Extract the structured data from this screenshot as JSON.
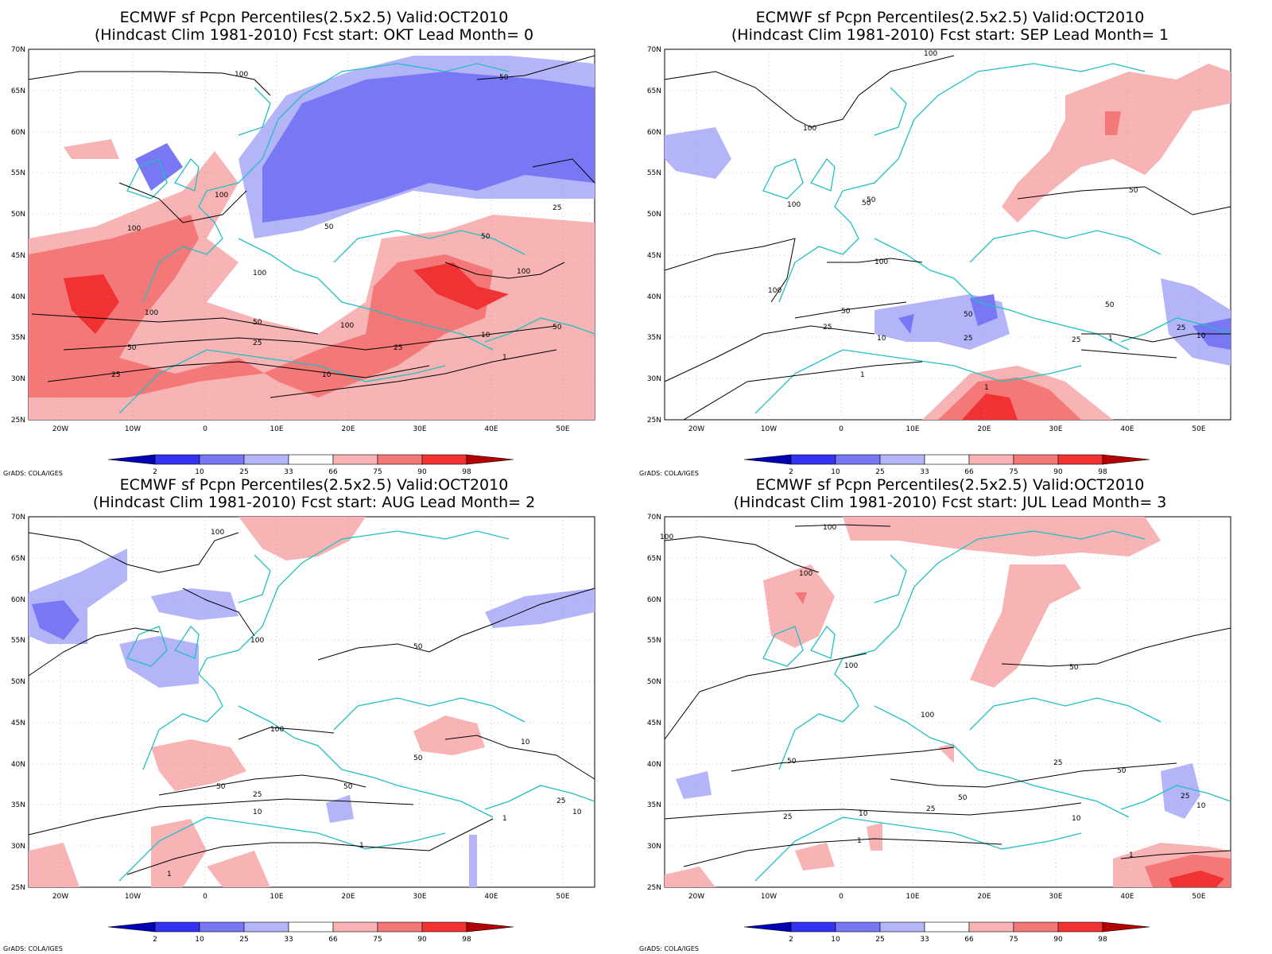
{
  "credit": "GrADS: COLA/IGES",
  "lat_ticks": [
    "70N",
    "65N",
    "60N",
    "55N",
    "50N",
    "45N",
    "40N",
    "35N",
    "30N",
    "25N"
  ],
  "lon_ticks": [
    "20W",
    "10W",
    "0",
    "10E",
    "20E",
    "30E",
    "40E",
    "50E"
  ],
  "colorbar": {
    "labels": [
      "2",
      "10",
      "25",
      "33",
      "66",
      "75",
      "90",
      "98"
    ],
    "colors": [
      "#0000b4",
      "#3232f0",
      "#7878f5",
      "#b4b4f8",
      "#ffffff",
      "#f8b4b4",
      "#f57878",
      "#f03232",
      "#b40000"
    ]
  },
  "panels": [
    {
      "title_line1": "ECMWF sf Pcpn Percentiles(2.5x2.5) Valid:OCT2010",
      "title_line2": "(Hindcast Clim 1981-2010) Fcst start: OKT  Lead Month= 0",
      "contour_labels": [
        "100",
        "100",
        "100",
        "100",
        "100",
        "100",
        "100",
        "50",
        "50",
        "50",
        "50",
        "50",
        "50",
        "25",
        "25",
        "25",
        "25",
        "10",
        "10",
        "1"
      ]
    },
    {
      "title_line1": "ECMWF sf Pcpn Percentiles(2.5x2.5) Valid:OCT2010",
      "title_line2": "(Hindcast Clim 1981-2010) Fcst start: SEP  Lead Month= 1",
      "contour_labels": [
        "100",
        "100",
        "100",
        "100",
        "100",
        "50",
        "50",
        "50",
        "50",
        "50",
        "25",
        "25",
        "25",
        "10",
        "10",
        "1",
        "1",
        "1",
        "50",
        "25"
      ]
    },
    {
      "title_line1": "ECMWF sf Pcpn Percentiles(2.5x2.5) Valid:OCT2010",
      "title_line2": "(Hindcast Clim 1981-2010) Fcst start: AUG  Lead Month= 2",
      "contour_labels": [
        "100",
        "100",
        "100",
        "50",
        "50",
        "50",
        "50",
        "25",
        "25",
        "10",
        "10",
        "1",
        "1",
        "1",
        "10"
      ]
    },
    {
      "title_line1": "ECMWF sf Pcpn Percentiles(2.5x2.5) Valid:OCT2010",
      "title_line2": "(Hindcast Clim 1981-2010) Fcst start: JUL  Lead Month= 3",
      "contour_labels": [
        "100",
        "100",
        "100",
        "100",
        "100",
        "50",
        "50",
        "50",
        "50",
        "25",
        "25",
        "25",
        "10",
        "10",
        "1",
        "1",
        "25",
        "10"
      ]
    }
  ]
}
